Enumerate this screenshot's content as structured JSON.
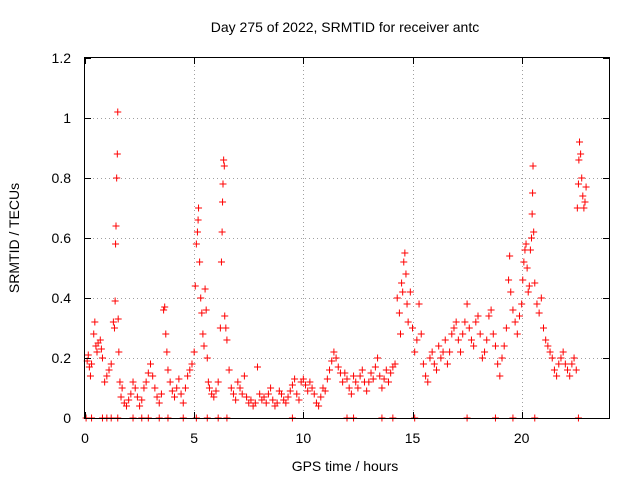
{
  "chart_data": {
    "type": "scatter",
    "title": "Day 275 of 2022, SRMTID for receiver antc",
    "xlabel": "GPS time / hours",
    "ylabel": "SRMTID / TECUs",
    "xlim": [
      0,
      24
    ],
    "ylim": [
      0,
      1.2
    ],
    "xticks": [
      0,
      5,
      10,
      15,
      20
    ],
    "xtick_labels": [
      "0",
      "5",
      "10",
      "15",
      "20"
    ],
    "yticks": [
      0,
      0.2,
      0.4,
      0.6,
      0.8,
      1.0,
      1.2
    ],
    "ytick_labels": [
      "0",
      "0.2",
      "0.4",
      "0.6",
      "0.8",
      "1",
      "1.2"
    ],
    "grid": true,
    "marker": "+",
    "color": "#ff0000",
    "series": [
      {
        "name": "SRMTID",
        "points": [
          [
            0.1,
            0.19
          ],
          [
            0.15,
            0.21
          ],
          [
            0.2,
            0.17
          ],
          [
            0.25,
            0.14
          ],
          [
            0.3,
            0.18
          ],
          [
            0.4,
            0.28
          ],
          [
            0.45,
            0.32
          ],
          [
            0.5,
            0.24
          ],
          [
            0.55,
            0.22
          ],
          [
            0.6,
            0.25
          ],
          [
            0.7,
            0.26
          ],
          [
            0.75,
            0.23
          ],
          [
            0.8,
            0.2
          ],
          [
            0.9,
            0.12
          ],
          [
            1.0,
            0.14
          ],
          [
            1.1,
            0.16
          ],
          [
            1.2,
            0.18
          ],
          [
            1.3,
            0.32
          ],
          [
            1.35,
            0.3
          ],
          [
            1.38,
            0.39
          ],
          [
            1.4,
            0.58
          ],
          [
            1.42,
            0.64
          ],
          [
            1.45,
            0.8
          ],
          [
            1.48,
            0.88
          ],
          [
            1.5,
            1.02
          ],
          [
            1.52,
            0.33
          ],
          [
            1.55,
            0.22
          ],
          [
            1.6,
            0.12
          ],
          [
            1.65,
            0.07
          ],
          [
            1.7,
            0.1
          ],
          [
            1.8,
            0.05
          ],
          [
            1.9,
            0.04
          ],
          [
            2.0,
            0.06
          ],
          [
            2.1,
            0.08
          ],
          [
            2.2,
            0.12
          ],
          [
            2.3,
            0.1
          ],
          [
            2.4,
            0.07
          ],
          [
            2.5,
            0.04
          ],
          [
            2.6,
            0.06
          ],
          [
            2.7,
            0.1
          ],
          [
            2.8,
            0.12
          ],
          [
            2.9,
            0.15
          ],
          [
            3.0,
            0.18
          ],
          [
            3.1,
            0.14
          ],
          [
            3.2,
            0.1
          ],
          [
            3.3,
            0.07
          ],
          [
            3.4,
            0.05
          ],
          [
            3.5,
            0.08
          ],
          [
            3.6,
            0.36
          ],
          [
            3.65,
            0.37
          ],
          [
            3.7,
            0.28
          ],
          [
            3.75,
            0.22
          ],
          [
            3.8,
            0.16
          ],
          [
            3.9,
            0.12
          ],
          [
            4.0,
            0.09
          ],
          [
            4.1,
            0.07
          ],
          [
            4.2,
            0.1
          ],
          [
            4.3,
            0.13
          ],
          [
            4.4,
            0.08
          ],
          [
            4.5,
            0.05
          ],
          [
            4.6,
            0.1
          ],
          [
            4.7,
            0.14
          ],
          [
            4.8,
            0.16
          ],
          [
            4.9,
            0.18
          ],
          [
            5.0,
            0.22
          ],
          [
            5.05,
            0.44
          ],
          [
            5.1,
            0.58
          ],
          [
            5.15,
            0.62
          ],
          [
            5.18,
            0.66
          ],
          [
            5.2,
            0.7
          ],
          [
            5.25,
            0.52
          ],
          [
            5.3,
            0.4
          ],
          [
            5.35,
            0.35
          ],
          [
            5.4,
            0.28
          ],
          [
            5.45,
            0.24
          ],
          [
            5.5,
            0.43
          ],
          [
            5.55,
            0.36
          ],
          [
            5.6,
            0.2
          ],
          [
            5.65,
            0.12
          ],
          [
            5.7,
            0.1
          ],
          [
            5.8,
            0.08
          ],
          [
            5.9,
            0.07
          ],
          [
            6.0,
            0.09
          ],
          [
            6.1,
            0.12
          ],
          [
            6.2,
            0.3
          ],
          [
            6.25,
            0.52
          ],
          [
            6.28,
            0.62
          ],
          [
            6.3,
            0.72
          ],
          [
            6.32,
            0.78
          ],
          [
            6.35,
            0.86
          ],
          [
            6.38,
            0.84
          ],
          [
            6.4,
            0.34
          ],
          [
            6.45,
            0.3
          ],
          [
            6.5,
            0.26
          ],
          [
            6.6,
            0.16
          ],
          [
            6.7,
            0.1
          ],
          [
            6.8,
            0.08
          ],
          [
            6.9,
            0.06
          ],
          [
            7.0,
            0.12
          ],
          [
            7.1,
            0.1
          ],
          [
            7.2,
            0.08
          ],
          [
            7.3,
            0.14
          ],
          [
            7.4,
            0.07
          ],
          [
            7.5,
            0.05
          ],
          [
            7.6,
            0.06
          ],
          [
            7.7,
            0.04
          ],
          [
            7.8,
            0.05
          ],
          [
            7.9,
            0.17
          ],
          [
            8.0,
            0.08
          ],
          [
            8.1,
            0.06
          ],
          [
            8.2,
            0.07
          ],
          [
            8.3,
            0.05
          ],
          [
            8.4,
            0.08
          ],
          [
            8.5,
            0.1
          ],
          [
            8.6,
            0.06
          ],
          [
            8.7,
            0.04
          ],
          [
            8.8,
            0.05
          ],
          [
            8.9,
            0.09
          ],
          [
            9.0,
            0.08
          ],
          [
            9.1,
            0.06
          ],
          [
            9.2,
            0.05
          ],
          [
            9.3,
            0.07
          ],
          [
            9.4,
            0.09
          ],
          [
            9.5,
            0.11
          ],
          [
            9.6,
            0.13
          ],
          [
            9.7,
            0.08
          ],
          [
            9.8,
            0.06
          ],
          [
            9.9,
            0.12
          ],
          [
            10.0,
            0.13
          ],
          [
            10.1,
            0.11
          ],
          [
            10.2,
            0.09
          ],
          [
            10.3,
            0.12
          ],
          [
            10.4,
            0.1
          ],
          [
            10.5,
            0.08
          ],
          [
            10.6,
            0.05
          ],
          [
            10.7,
            0.04
          ],
          [
            10.8,
            0.07
          ],
          [
            10.9,
            0.1
          ],
          [
            11.0,
            0.09
          ],
          [
            11.1,
            0.13
          ],
          [
            11.2,
            0.16
          ],
          [
            11.3,
            0.19
          ],
          [
            11.4,
            0.22
          ],
          [
            11.5,
            0.2
          ],
          [
            11.6,
            0.17
          ],
          [
            11.7,
            0.15
          ],
          [
            11.8,
            0.12
          ],
          [
            11.9,
            0.15
          ],
          [
            12.0,
            0.13
          ],
          [
            12.1,
            0.1
          ],
          [
            12.2,
            0.08
          ],
          [
            12.3,
            0.14
          ],
          [
            12.4,
            0.12
          ],
          [
            12.5,
            0.1
          ],
          [
            12.6,
            0.14
          ],
          [
            12.7,
            0.16
          ],
          [
            12.8,
            0.12
          ],
          [
            12.9,
            0.09
          ],
          [
            13.0,
            0.12
          ],
          [
            13.1,
            0.15
          ],
          [
            13.2,
            0.13
          ],
          [
            13.3,
            0.17
          ],
          [
            13.4,
            0.2
          ],
          [
            13.5,
            0.14
          ],
          [
            13.6,
            0.1
          ],
          [
            13.7,
            0.13
          ],
          [
            13.8,
            0.16
          ],
          [
            13.9,
            0.12
          ],
          [
            14.0,
            0.15
          ],
          [
            14.1,
            0.17
          ],
          [
            14.2,
            0.18
          ],
          [
            14.3,
            0.4
          ],
          [
            14.4,
            0.35
          ],
          [
            14.45,
            0.28
          ],
          [
            14.5,
            0.45
          ],
          [
            14.55,
            0.42
          ],
          [
            14.6,
            0.52
          ],
          [
            14.65,
            0.55
          ],
          [
            14.7,
            0.48
          ],
          [
            14.75,
            0.38
          ],
          [
            14.8,
            0.32
          ],
          [
            14.9,
            0.42
          ],
          [
            15.0,
            0.3
          ],
          [
            15.1,
            0.22
          ],
          [
            15.2,
            0.26
          ],
          [
            15.3,
            0.38
          ],
          [
            15.4,
            0.28
          ],
          [
            15.5,
            0.18
          ],
          [
            15.6,
            0.14
          ],
          [
            15.7,
            0.12
          ],
          [
            15.8,
            0.2
          ],
          [
            15.9,
            0.22
          ],
          [
            16.0,
            0.18
          ],
          [
            16.1,
            0.16
          ],
          [
            16.2,
            0.24
          ],
          [
            16.3,
            0.2
          ],
          [
            16.4,
            0.22
          ],
          [
            16.5,
            0.26
          ],
          [
            16.6,
            0.18
          ],
          [
            16.7,
            0.22
          ],
          [
            16.8,
            0.28
          ],
          [
            16.9,
            0.3
          ],
          [
            17.0,
            0.32
          ],
          [
            17.1,
            0.26
          ],
          [
            17.2,
            0.22
          ],
          [
            17.3,
            0.28
          ],
          [
            17.4,
            0.32
          ],
          [
            17.5,
            0.38
          ],
          [
            17.6,
            0.3
          ],
          [
            17.7,
            0.26
          ],
          [
            17.8,
            0.24
          ],
          [
            17.9,
            0.32
          ],
          [
            18.0,
            0.34
          ],
          [
            18.1,
            0.28
          ],
          [
            18.2,
            0.2
          ],
          [
            18.3,
            0.22
          ],
          [
            18.4,
            0.26
          ],
          [
            18.5,
            0.34
          ],
          [
            18.6,
            0.36
          ],
          [
            18.7,
            0.28
          ],
          [
            18.8,
            0.24
          ],
          [
            18.9,
            0.18
          ],
          [
            19.0,
            0.14
          ],
          [
            19.1,
            0.2
          ],
          [
            19.2,
            0.24
          ],
          [
            19.3,
            0.3
          ],
          [
            19.4,
            0.46
          ],
          [
            19.45,
            0.54
          ],
          [
            19.5,
            0.42
          ],
          [
            19.6,
            0.36
          ],
          [
            19.7,
            0.32
          ],
          [
            19.8,
            0.28
          ],
          [
            19.9,
            0.34
          ],
          [
            20.0,
            0.38
          ],
          [
            20.05,
            0.46
          ],
          [
            20.1,
            0.52
          ],
          [
            20.15,
            0.56
          ],
          [
            20.2,
            0.58
          ],
          [
            20.25,
            0.5
          ],
          [
            20.3,
            0.42
          ],
          [
            20.35,
            0.44
          ],
          [
            20.4,
            0.56
          ],
          [
            20.45,
            0.6
          ],
          [
            20.48,
            0.68
          ],
          [
            20.5,
            0.75
          ],
          [
            20.52,
            0.84
          ],
          [
            20.55,
            0.62
          ],
          [
            20.6,
            0.45
          ],
          [
            20.7,
            0.38
          ],
          [
            20.8,
            0.35
          ],
          [
            20.9,
            0.4
          ],
          [
            21.0,
            0.3
          ],
          [
            21.1,
            0.26
          ],
          [
            21.2,
            0.24
          ],
          [
            21.3,
            0.22
          ],
          [
            21.4,
            0.2
          ],
          [
            21.5,
            0.16
          ],
          [
            21.6,
            0.14
          ],
          [
            21.7,
            0.18
          ],
          [
            21.8,
            0.2
          ],
          [
            21.9,
            0.22
          ],
          [
            22.0,
            0.18
          ],
          [
            22.1,
            0.16
          ],
          [
            22.2,
            0.14
          ],
          [
            22.3,
            0.18
          ],
          [
            22.4,
            0.2
          ],
          [
            22.5,
            0.16
          ],
          [
            22.55,
            0.7
          ],
          [
            22.6,
            0.78
          ],
          [
            22.62,
            0.86
          ],
          [
            22.65,
            0.92
          ],
          [
            22.7,
            0.88
          ],
          [
            22.75,
            0.8
          ],
          [
            22.8,
            0.74
          ],
          [
            22.85,
            0.7
          ],
          [
            22.9,
            0.72
          ],
          [
            22.95,
            0.77
          ],
          [
            0.05,
            0.0
          ],
          [
            0.3,
            0.0
          ],
          [
            0.8,
            0.0
          ],
          [
            1.0,
            0.0
          ],
          [
            1.2,
            0.0
          ],
          [
            1.5,
            0.0
          ],
          [
            2.2,
            0.0
          ],
          [
            2.6,
            0.0
          ],
          [
            2.9,
            0.0
          ],
          [
            3.4,
            0.0
          ],
          [
            3.8,
            0.0
          ],
          [
            4.5,
            0.0
          ],
          [
            5.1,
            0.0
          ],
          [
            5.6,
            0.0
          ],
          [
            6.1,
            0.0
          ],
          [
            6.5,
            0.0
          ],
          [
            9.5,
            0.0
          ],
          [
            12.0,
            0.0
          ],
          [
            12.3,
            0.0
          ],
          [
            13.6,
            0.0
          ],
          [
            14.1,
            0.0
          ],
          [
            15.1,
            0.0
          ],
          [
            17.5,
            0.0
          ],
          [
            18.8,
            0.0
          ],
          [
            19.6,
            0.0
          ],
          [
            20.6,
            0.0
          ],
          [
            22.6,
            0.0
          ]
        ]
      }
    ]
  }
}
